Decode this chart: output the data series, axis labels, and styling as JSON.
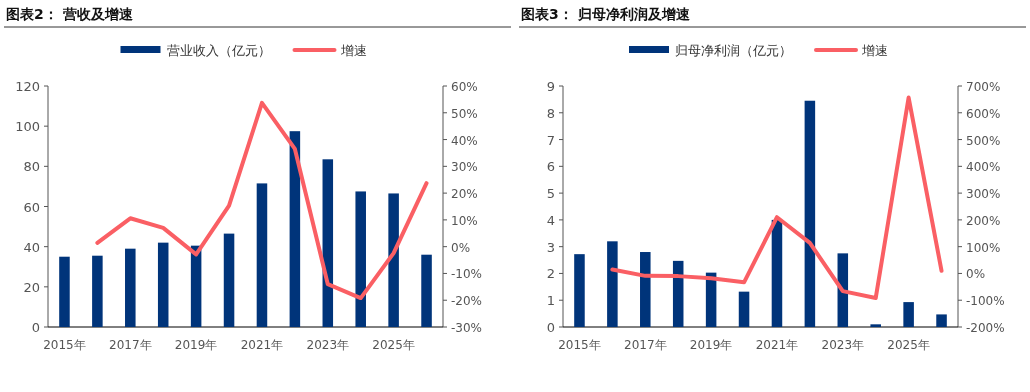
{
  "chart_data": [
    {
      "type": "bar",
      "title": "图表2：  营收及增速",
      "legend": "top",
      "categories": [
        "2015年",
        null,
        "2017年",
        null,
        "2019年",
        null,
        "2021年",
        null,
        "2023年",
        null,
        "2025年",
        null
      ],
      "ylim": [
        0,
        120
      ],
      "yticks": [
        0,
        20,
        40,
        60,
        80,
        100,
        120
      ],
      "y2lim": [
        -30,
        60
      ],
      "y2ticks": [
        {
          "value": -30,
          "label": "-30%"
        },
        {
          "value": -20,
          "label": "-20%"
        },
        {
          "value": -10,
          "label": "-10%"
        },
        {
          "value": 0,
          "label": "0%"
        },
        {
          "value": 10,
          "label": "10%"
        },
        {
          "value": 20,
          "label": "20%"
        },
        {
          "value": 30,
          "label": "30%"
        },
        {
          "value": 40,
          "label": "40%"
        },
        {
          "value": 50,
          "label": "50%"
        },
        {
          "value": 60,
          "label": "60%"
        }
      ],
      "series": [
        {
          "name": "营业收入（亿元）",
          "color": "#00347a",
          "values": [
            35,
            35.5,
            39,
            42,
            40.5,
            46.5,
            71.5,
            97.5,
            83.5,
            67.5,
            66.5,
            36
          ]
        },
        {
          "name": "增速",
          "type": "line",
          "axis": "y2",
          "color": "#fa5f64",
          "values": [
            null,
            1.4,
            10.6,
            7,
            -2.9,
            15.3,
            53.7,
            36.5,
            -14,
            -19.2,
            -2.4,
            23.7
          ]
        }
      ]
    },
    {
      "type": "bar",
      "title": "图表3：  归母净利润及增速",
      "legend": "top",
      "categories": [
        "2015年",
        null,
        "2017年",
        null,
        "2019年",
        null,
        "2021年",
        null,
        "2023年",
        null,
        "2025年",
        null
      ],
      "ylim": [
        0,
        9
      ],
      "yticks": [
        0,
        1,
        2,
        3,
        4,
        5,
        6,
        7,
        8,
        9
      ],
      "y2lim": [
        -200,
        700
      ],
      "y2ticks": [
        {
          "value": -200,
          "label": "-200%"
        },
        {
          "value": -100,
          "label": "-100%"
        },
        {
          "value": 0,
          "label": "0%"
        },
        {
          "value": 100,
          "label": "100%"
        },
        {
          "value": 200,
          "label": "200%"
        },
        {
          "value": 300,
          "label": "300%"
        },
        {
          "value": 400,
          "label": "400%"
        },
        {
          "value": 500,
          "label": "500%"
        },
        {
          "value": 600,
          "label": "600%"
        },
        {
          "value": 700,
          "label": "700%"
        }
      ],
      "series": [
        {
          "name": "归母净利润（亿元）",
          "color": "#00347a",
          "values": [
            2.72,
            3.2,
            2.8,
            2.47,
            2.03,
            1.32,
            4.0,
            8.45,
            2.75,
            0.1,
            0.93,
            0.47
          ]
        },
        {
          "name": "增速",
          "type": "line",
          "axis": "y2",
          "color": "#fa5f64",
          "values": [
            null,
            15,
            -9,
            -10,
            -18,
            -33,
            210,
            114,
            -66,
            -92,
            657,
            10
          ]
        }
      ]
    }
  ]
}
